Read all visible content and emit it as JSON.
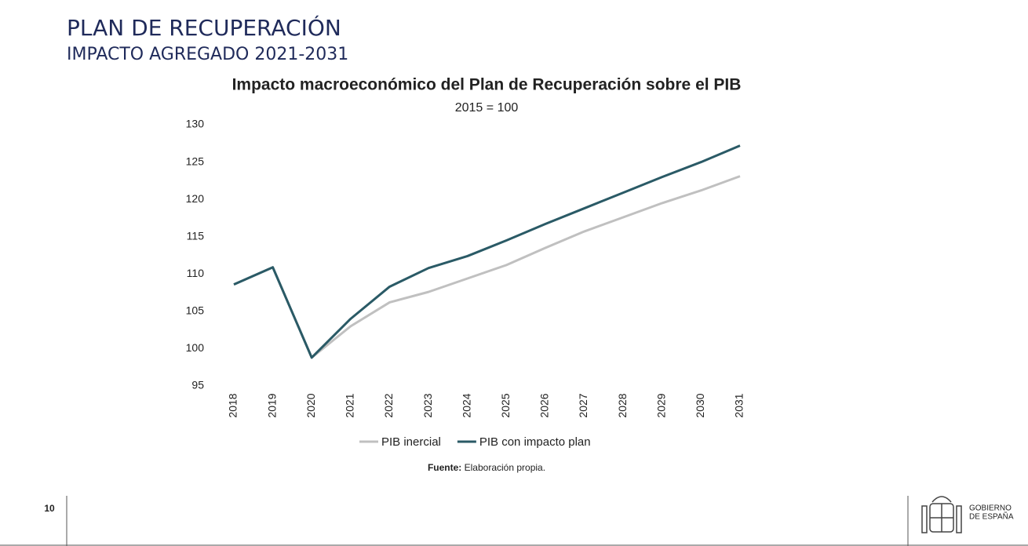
{
  "header": {
    "title": "PLAN DE RECUPERACIÓN",
    "subtitle": "IMPACTO AGREGADO 2021-2031"
  },
  "chart_data": {
    "type": "line",
    "title": "Impacto macroeconómico del Plan de Recuperación sobre el PIB",
    "subtitle": "2015 = 100",
    "categories": [
      "2018",
      "2019",
      "2020",
      "2021",
      "2022",
      "2023",
      "2024",
      "2025",
      "2026",
      "2027",
      "2028",
      "2029",
      "2030",
      "2031"
    ],
    "series": [
      {
        "name": "PIB inercial",
        "color": "#c0c0c0",
        "values": [
          108.6,
          110.9,
          98.8,
          103.0,
          106.2,
          107.6,
          109.4,
          111.2,
          113.5,
          115.7,
          117.6,
          119.5,
          121.2,
          123.1
        ]
      },
      {
        "name": "PIB con impacto plan",
        "color": "#2a5a66",
        "values": [
          108.6,
          110.9,
          98.8,
          104.0,
          108.3,
          110.8,
          112.4,
          114.5,
          116.7,
          118.8,
          120.9,
          123.0,
          125.0,
          127.2
        ]
      }
    ],
    "ylim": [
      95,
      130
    ],
    "yticks": [
      95,
      100,
      105,
      110,
      115,
      120,
      125,
      130
    ],
    "grid": false,
    "legend": "bottom"
  },
  "source": {
    "label": "Fuente:",
    "text": "Elaboración propia."
  },
  "footer": {
    "page": "10",
    "org_lines": [
      "GOBIERNO",
      "DE ESPAÑA"
    ]
  }
}
